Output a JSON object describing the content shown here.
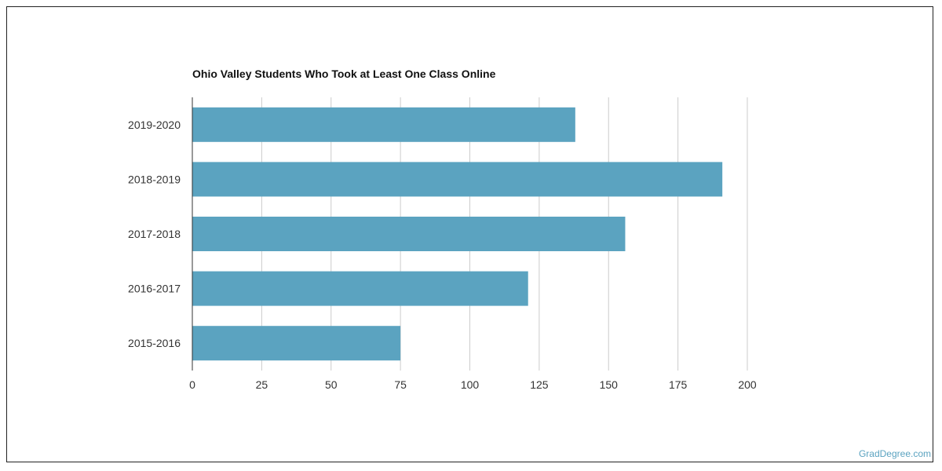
{
  "chart_data": {
    "type": "bar",
    "orientation": "horizontal",
    "title": "Ohio Valley Students Who Took at Least One Class Online",
    "xlabel": "",
    "ylabel": "",
    "categories": [
      "2019-2020",
      "2018-2019",
      "2017-2018",
      "2016-2017",
      "2015-2016"
    ],
    "values": [
      138,
      191,
      156,
      121,
      75
    ],
    "xlim": [
      0,
      200
    ],
    "xticks": [
      0,
      25,
      50,
      75,
      100,
      125,
      150,
      175,
      200
    ],
    "grid": true,
    "legend": "none",
    "bar_color": "#5ba3c0"
  },
  "watermark": "GradDegree.com"
}
